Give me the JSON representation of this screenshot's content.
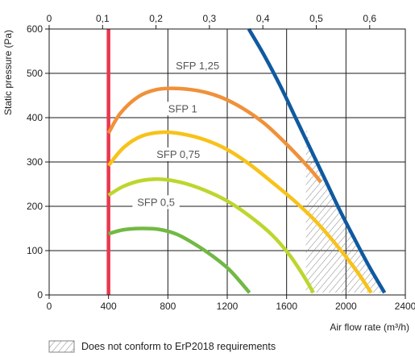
{
  "chart_data": {
    "type": "line",
    "title": "",
    "xlabel": "Air flow rate (m³/h)",
    "ylabel": "Static pressure (Pa)",
    "xlim": [
      0,
      2400
    ],
    "ylim": [
      0,
      600
    ],
    "x_ticks": [
      "0",
      "400",
      "800",
      "1200",
      "1600",
      "2000",
      "2400"
    ],
    "y_ticks": [
      "0",
      "100",
      "200",
      "300",
      "400",
      "500",
      "600"
    ],
    "secondary_x": {
      "position": "top",
      "lim": [
        0,
        0.6667
      ],
      "ticks": [
        "0",
        "0,1",
        "0,2",
        "0,3",
        "0,4",
        "0,5",
        "0,6"
      ]
    },
    "grid": true,
    "sfp_labels": [
      "SFP 1,25",
      "SFP 1",
      "SFP 0,75",
      "SFP 0,5"
    ],
    "series": [
      {
        "color": "#e8384f",
        "points": [
          [
            400,
            0
          ],
          [
            400,
            600
          ]
        ]
      },
      {
        "color": "#f0913a",
        "points": [
          [
            400,
            365
          ],
          [
            480,
            410
          ],
          [
            600,
            447
          ],
          [
            720,
            463
          ],
          [
            850,
            466
          ],
          [
            1000,
            461
          ],
          [
            1150,
            447
          ],
          [
            1300,
            422
          ],
          [
            1450,
            387
          ],
          [
            1600,
            340
          ],
          [
            1750,
            287
          ],
          [
            1830,
            255
          ]
        ]
      },
      {
        "color": "#f8c21b",
        "points": [
          [
            400,
            292
          ],
          [
            500,
            332
          ],
          [
            620,
            358
          ],
          [
            760,
            367
          ],
          [
            900,
            363
          ],
          [
            1050,
            350
          ],
          [
            1200,
            328
          ],
          [
            1350,
            295
          ],
          [
            1500,
            255
          ],
          [
            1650,
            213
          ],
          [
            1800,
            165
          ],
          [
            1950,
            107
          ],
          [
            2070,
            55
          ],
          [
            2170,
            5
          ]
        ]
      },
      {
        "color": "#bdd62e",
        "points": [
          [
            400,
            225
          ],
          [
            500,
            245
          ],
          [
            620,
            258
          ],
          [
            760,
            261
          ],
          [
            900,
            253
          ],
          [
            1050,
            236
          ],
          [
            1200,
            212
          ],
          [
            1350,
            178
          ],
          [
            1500,
            136
          ],
          [
            1620,
            90
          ],
          [
            1720,
            40
          ],
          [
            1780,
            5
          ]
        ]
      },
      {
        "color": "#72b944",
        "points": [
          [
            400,
            138
          ],
          [
            500,
            147
          ],
          [
            620,
            150
          ],
          [
            740,
            148
          ],
          [
            860,
            137
          ],
          [
            980,
            115
          ],
          [
            1100,
            88
          ],
          [
            1220,
            55
          ],
          [
            1350,
            5
          ]
        ]
      },
      {
        "color": "#0f5aa0",
        "points": [
          [
            1345,
            600
          ],
          [
            1450,
            540
          ],
          [
            1560,
            470
          ],
          [
            1660,
            400
          ],
          [
            1760,
            330
          ],
          [
            1860,
            260
          ],
          [
            1960,
            190
          ],
          [
            2060,
            125
          ],
          [
            2160,
            62
          ],
          [
            2260,
            5
          ]
        ]
      }
    ],
    "shaded_region": [
      [
        1730,
        385
      ],
      [
        1760,
        330
      ],
      [
        1860,
        260
      ],
      [
        1960,
        190
      ],
      [
        2060,
        125
      ],
      [
        2160,
        62
      ],
      [
        2270,
        5
      ],
      [
        1730,
        5
      ]
    ],
    "legend": {
      "placement": "bottom-left",
      "label": "Does not conform to ErP2018 requirements"
    }
  }
}
